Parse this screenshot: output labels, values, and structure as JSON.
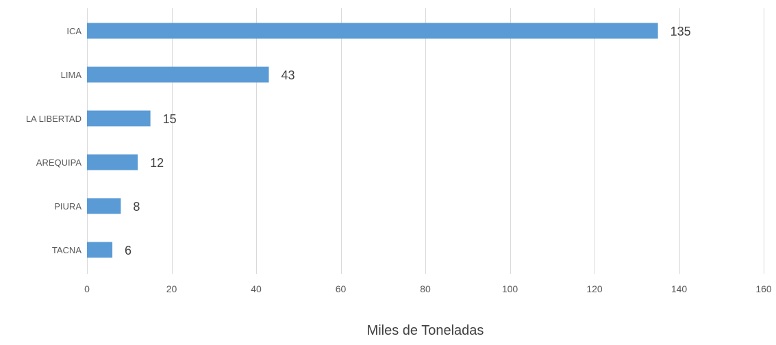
{
  "chart_data": {
    "type": "bar",
    "orientation": "horizontal",
    "title": "",
    "xlabel": "Miles de Toneladas",
    "ylabel": "",
    "categories": [
      "ICA",
      "LIMA",
      "LA LIBERTAD",
      "AREQUIPA",
      "PIURA",
      "TACNA"
    ],
    "values": [
      135,
      43,
      15,
      12,
      8,
      6
    ],
    "value_labels": [
      "135",
      "43",
      "15",
      "12",
      "8",
      "6"
    ],
    "xlim": [
      0,
      160
    ],
    "xticks": [
      "0",
      "20",
      "40",
      "60",
      "80",
      "100",
      "120",
      "140",
      "160"
    ],
    "xtick_values": [
      0,
      20,
      40,
      60,
      80,
      100,
      120,
      140,
      160
    ],
    "grid": "vertical",
    "legend": "none",
    "bar_color": "#5b9bd5"
  }
}
